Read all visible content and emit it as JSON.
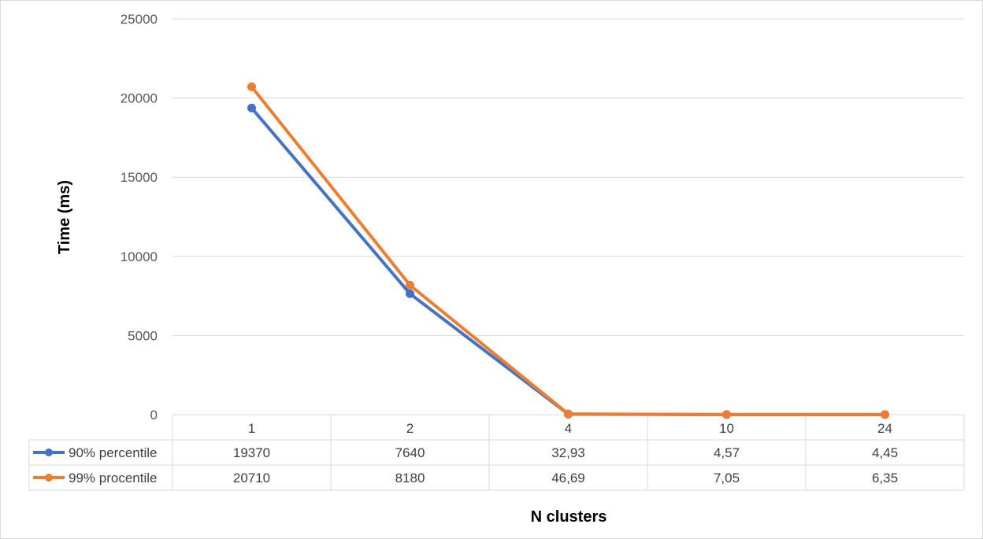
{
  "chart_data": {
    "type": "line",
    "xlabel": "N clusters",
    "ylabel": "Time (ms)",
    "ylim": [
      0,
      25000
    ],
    "y_ticks": [
      "0",
      "5000",
      "10000",
      "15000",
      "20000",
      "25000"
    ],
    "categories": [
      "1",
      "2",
      "4",
      "10",
      "24"
    ],
    "grid": true,
    "legend": "data-table",
    "series": [
      {
        "name": "90% percentile",
        "color": "#4472C4",
        "values": [
          19370,
          7640,
          32.93,
          4.57,
          4.45
        ],
        "labels": [
          "19370",
          "7640",
          "32,93",
          "4,57",
          "4,45"
        ]
      },
      {
        "name": "99% procentile",
        "color": "#ED7D31",
        "values": [
          20710,
          8180,
          46.69,
          7.05,
          6.35
        ],
        "labels": [
          "20710",
          "8180",
          "46,69",
          "7,05",
          "6,35"
        ]
      }
    ]
  }
}
